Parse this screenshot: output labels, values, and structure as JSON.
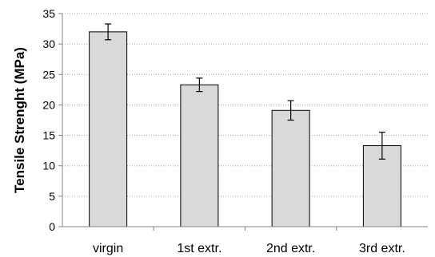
{
  "chart_data": {
    "type": "bar",
    "categories": [
      "virgin",
      "1st extr.",
      "2nd extr.",
      "3rd extr."
    ],
    "values": [
      32.0,
      23.3,
      19.1,
      13.3
    ],
    "error": [
      1.3,
      1.1,
      1.6,
      2.2
    ],
    "title": "",
    "xlabel": "",
    "ylabel": "Tensile Strenght (MPa)",
    "ylim": [
      0,
      35
    ],
    "yticks": [
      0,
      5,
      10,
      15,
      20,
      25,
      30,
      35
    ],
    "grid": true,
    "bar_color": "#d9d9d9"
  }
}
